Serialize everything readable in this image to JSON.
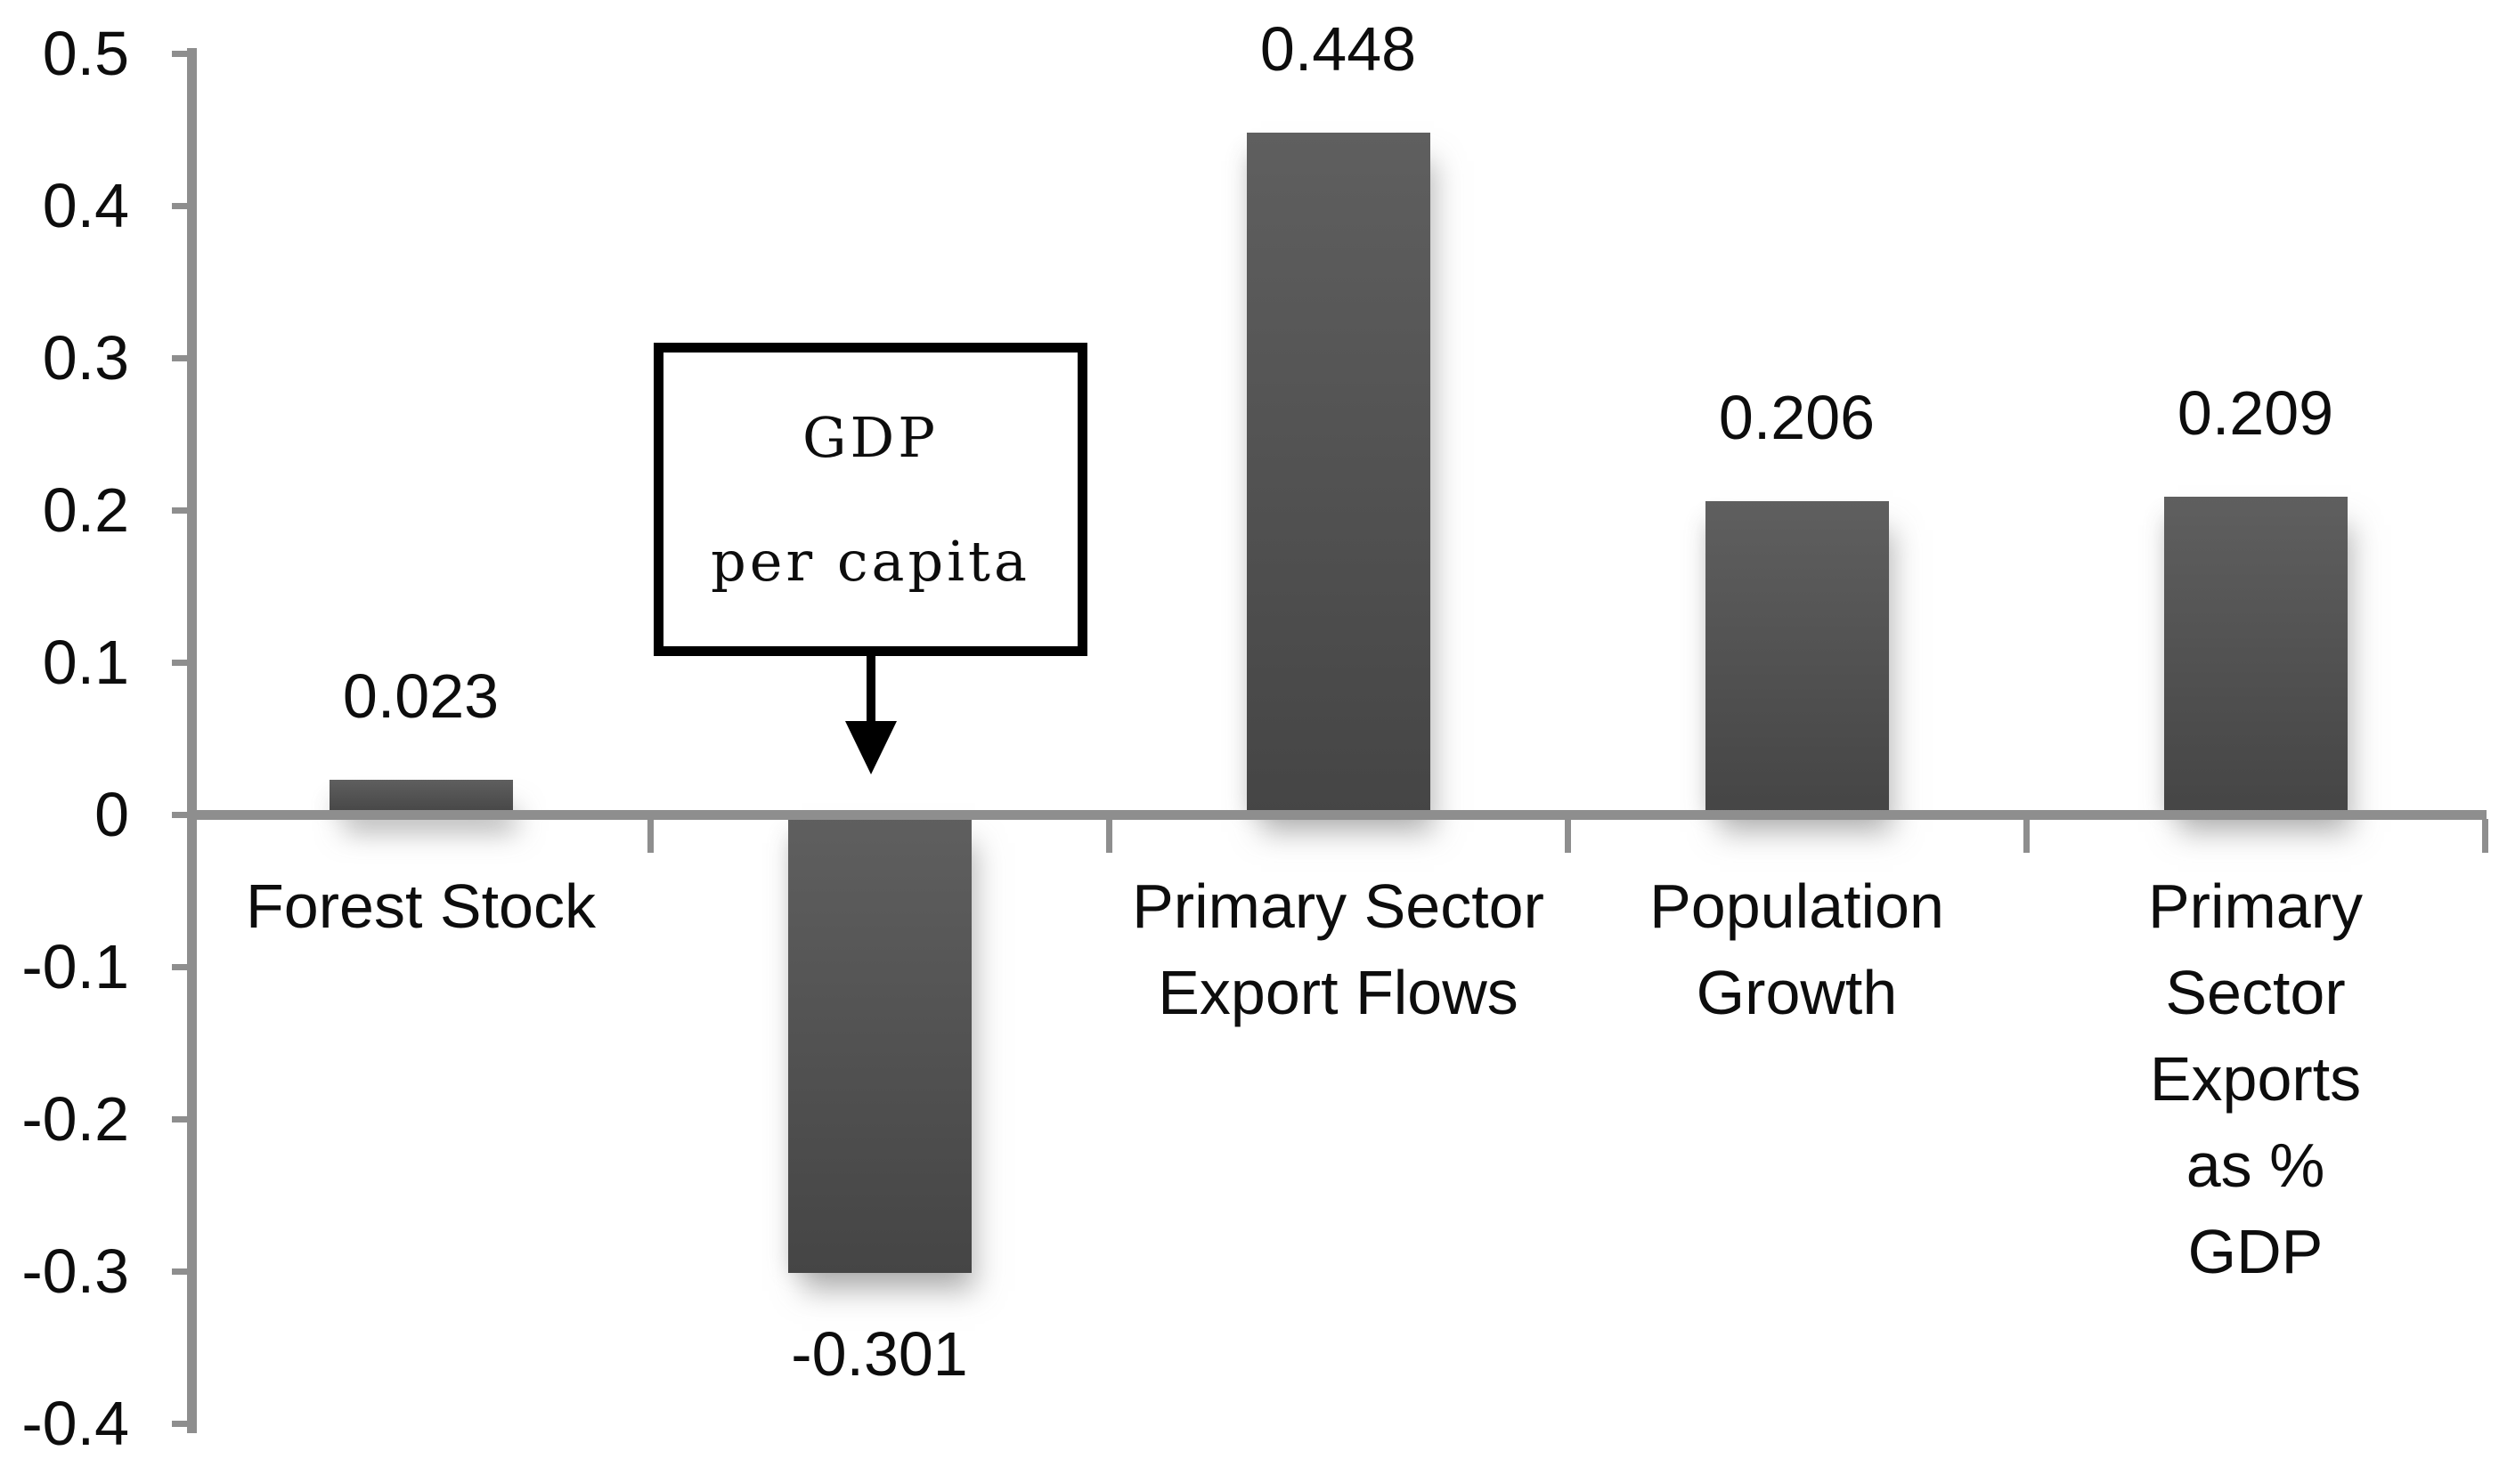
{
  "chart_data": {
    "type": "bar",
    "title": "",
    "categories": [
      "Forest Stock",
      "GDP per capita",
      "Primary Sector Export Flows",
      "Population Growth",
      "Primary Sector Exports as % GDP"
    ],
    "values": [
      0.023,
      -0.301,
      0.448,
      0.206,
      0.209
    ],
    "data_labels": [
      "0.023",
      "-0.301",
      "0.448",
      "0.206",
      "0.209"
    ],
    "x_tick_labels": [
      [
        "Forest Stock"
      ],
      [],
      [
        "Primary Sector",
        "Export Flows"
      ],
      [
        "Population",
        "Growth"
      ],
      [
        "Primary Sector",
        "Exports as %",
        "GDP"
      ]
    ],
    "y_axis": {
      "min": -0.4,
      "max": 0.5,
      "step": 0.1,
      "tick_labels": [
        "0.5",
        "0.4",
        "0.3",
        "0.2",
        "0.1",
        "0",
        "-0.1",
        "-0.2",
        "-0.3",
        "-0.4"
      ]
    },
    "annotation": {
      "line1": "GDP",
      "line2": "per capita",
      "target_category": "GDP per capita",
      "target_index": 1
    },
    "grid": "off",
    "legend_position": "none",
    "bar_color_top": "#5f5f5f",
    "bar_color_bottom": "#454545",
    "axis_color": "#8e8e8e",
    "text_color": "#0d0d0d"
  }
}
